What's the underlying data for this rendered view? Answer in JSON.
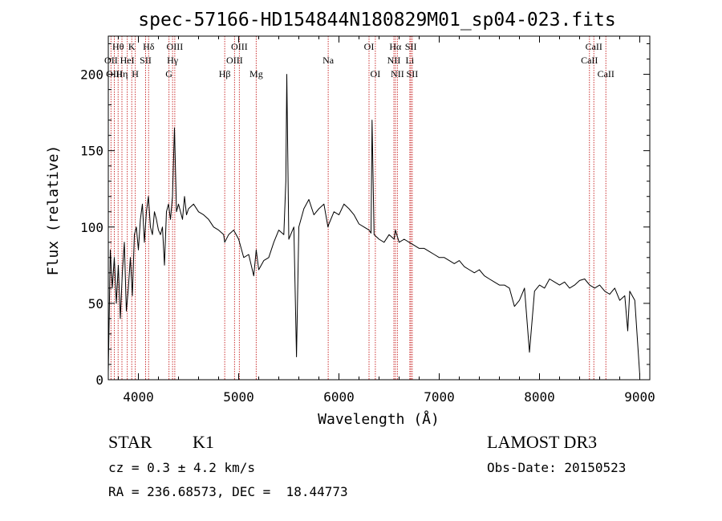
{
  "chart_data": {
    "type": "line",
    "title": "spec-57166-HD154844N180829M01_sp04-023.fits",
    "xlabel": "Wavelength (Å)",
    "ylabel": "Flux (relative)",
    "xlim": [
      3700,
      9100
    ],
    "ylim": [
      0,
      225
    ],
    "xticks": [
      4000,
      5000,
      6000,
      7000,
      8000,
      9000
    ],
    "xtick_labels": [
      "4000",
      "5000",
      "6000",
      "7000",
      "8000",
      "9000"
    ],
    "yticks": [
      0,
      50,
      100,
      150,
      200
    ],
    "ytick_labels": [
      "0",
      "50",
      "100",
      "150",
      "200"
    ],
    "series": [
      {
        "name": "flux",
        "x": [
          3700,
          3720,
          3740,
          3760,
          3780,
          3800,
          3820,
          3840,
          3860,
          3880,
          3900,
          3920,
          3940,
          3960,
          3980,
          4000,
          4020,
          4040,
          4060,
          4080,
          4100,
          4120,
          4140,
          4160,
          4180,
          4200,
          4220,
          4240,
          4260,
          4280,
          4300,
          4320,
          4340,
          4360,
          4380,
          4400,
          4420,
          4440,
          4460,
          4480,
          4500,
          4550,
          4600,
          4650,
          4700,
          4750,
          4800,
          4850,
          4861,
          4900,
          4950,
          5000,
          5050,
          5100,
          5150,
          5175,
          5200,
          5250,
          5300,
          5350,
          5400,
          5450,
          5470,
          5480,
          5500,
          5550,
          5577,
          5600,
          5650,
          5700,
          5750,
          5800,
          5850,
          5890,
          5900,
          5950,
          6000,
          6050,
          6100,
          6150,
          6200,
          6250,
          6300,
          6320,
          6330,
          6350,
          6400,
          6450,
          6500,
          6550,
          6563,
          6600,
          6650,
          6700,
          6750,
          6800,
          6850,
          6900,
          6950,
          7000,
          7050,
          7100,
          7150,
          7200,
          7250,
          7300,
          7350,
          7400,
          7450,
          7500,
          7550,
          7600,
          7650,
          7700,
          7750,
          7800,
          7850,
          7900,
          7950,
          8000,
          8050,
          8100,
          8150,
          8200,
          8250,
          8300,
          8350,
          8400,
          8450,
          8500,
          8550,
          8600,
          8650,
          8700,
          8750,
          8800,
          8850,
          8880,
          8900,
          8950,
          9000
        ],
        "y": [
          5,
          85,
          60,
          80,
          50,
          75,
          40,
          70,
          90,
          45,
          60,
          80,
          55,
          95,
          100,
          85,
          105,
          115,
          90,
          110,
          120,
          100,
          95,
          110,
          105,
          98,
          95,
          100,
          75,
          110,
          115,
          105,
          120,
          165,
          110,
          115,
          110,
          105,
          120,
          108,
          112,
          115,
          110,
          108,
          105,
          100,
          98,
          95,
          90,
          95,
          98,
          92,
          80,
          82,
          68,
          85,
          72,
          78,
          80,
          90,
          98,
          95,
          130,
          200,
          92,
          100,
          15,
          100,
          112,
          118,
          108,
          112,
          115,
          100,
          102,
          110,
          108,
          115,
          112,
          108,
          102,
          100,
          98,
          96,
          170,
          95,
          92,
          90,
          95,
          92,
          98,
          90,
          92,
          90,
          88,
          86,
          86,
          84,
          82,
          80,
          80,
          78,
          76,
          78,
          74,
          72,
          70,
          72,
          68,
          66,
          64,
          62,
          62,
          60,
          48,
          52,
          60,
          18,
          58,
          62,
          60,
          66,
          64,
          62,
          64,
          60,
          62,
          65,
          66,
          62,
          60,
          62,
          58,
          56,
          60,
          52,
          55,
          32,
          58,
          52,
          3
        ]
      }
    ],
    "line_markers": [
      {
        "label": "Hθ",
        "x": 3798,
        "row": 1
      },
      {
        "label": "OII",
        "x": 3727,
        "row": 2
      },
      {
        "label": "OIII",
        "x": 3760,
        "row": 3
      },
      {
        "label": "Hη",
        "x": 3836,
        "row": 3
      },
      {
        "label": "K",
        "x": 3934,
        "row": 1
      },
      {
        "label": "HeI",
        "x": 3889,
        "row": 2
      },
      {
        "label": "H",
        "x": 3969,
        "row": 3
      },
      {
        "label": "SII",
        "x": 4072,
        "row": 2
      },
      {
        "label": "Hδ",
        "x": 4102,
        "row": 1
      },
      {
        "label": "OIII",
        "x": 4363,
        "row": 1
      },
      {
        "label": "Hγ",
        "x": 4341,
        "row": 2
      },
      {
        "label": "G",
        "x": 4305,
        "row": 3
      },
      {
        "label": "Hβ",
        "x": 4861,
        "row": 3
      },
      {
        "label": "OIII",
        "x": 4959,
        "row": 2
      },
      {
        "label": "OIII",
        "x": 5007,
        "row": 1
      },
      {
        "label": "Mg",
        "x": 5175,
        "row": 3
      },
      {
        "label": "Na",
        "x": 5893,
        "row": 2
      },
      {
        "label": "OI",
        "x": 6300,
        "row": 1
      },
      {
        "label": "OI",
        "x": 6363,
        "row": 3
      },
      {
        "label": "NII",
        "x": 6548,
        "row": 2
      },
      {
        "label": "Hα",
        "x": 6563,
        "row": 1
      },
      {
        "label": "NII",
        "x": 6583,
        "row": 3
      },
      {
        "label": "SII",
        "x": 6717,
        "row": 1
      },
      {
        "label": "Li",
        "x": 6707,
        "row": 2
      },
      {
        "label": "SII",
        "x": 6731,
        "row": 3
      },
      {
        "label": "CaII",
        "x": 8498,
        "row": 2
      },
      {
        "label": "CaII",
        "x": 8542,
        "row": 1
      },
      {
        "label": "CaII",
        "x": 8662,
        "row": 3
      }
    ]
  },
  "info": {
    "object_class": "STAR",
    "subclass": "K1",
    "survey": "LAMOST DR3",
    "cz": "cz = 0.3 ± 4.2 km/s",
    "obs_date": "Obs-Date: 20150523",
    "coords": "RA = 236.68573, DEC =  18.44773"
  },
  "colors": {
    "line": "#000000",
    "marker": "#cc3333",
    "axis": "#000000"
  }
}
